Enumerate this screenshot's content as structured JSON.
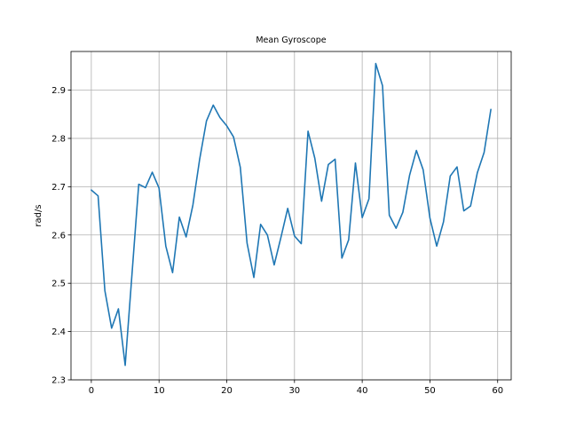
{
  "chart_data": {
    "type": "line",
    "title": "Mean Gyroscope",
    "xlabel": "",
    "ylabel": "rad/s",
    "xlim": [
      -3,
      62
    ],
    "ylim": [
      2.3,
      2.98
    ],
    "xticks": [
      0,
      10,
      20,
      30,
      40,
      50,
      60
    ],
    "yticks": [
      2.3,
      2.4,
      2.5,
      2.6,
      2.7,
      2.8,
      2.9
    ],
    "ytick_labels": [
      "2.3",
      "2.4",
      "2.5",
      "2.6",
      "2.7",
      "2.8",
      "2.9"
    ],
    "grid": true,
    "legend": "none",
    "series": [
      {
        "color": "#1f77b4",
        "x": [
          0,
          1,
          2,
          3,
          4,
          5,
          6,
          7,
          8,
          9,
          10,
          11,
          12,
          13,
          14,
          15,
          16,
          17,
          18,
          19,
          20,
          21,
          22,
          23,
          24,
          25,
          26,
          27,
          28,
          29,
          30,
          31,
          32,
          33,
          34,
          35,
          36,
          37,
          38,
          39,
          40,
          41,
          42,
          43,
          44,
          45,
          46,
          47,
          48,
          49,
          50,
          51,
          52,
          53,
          54,
          55,
          56,
          57,
          58,
          59
        ],
        "y": [
          2.693,
          2.681,
          2.485,
          2.407,
          2.447,
          2.33,
          2.518,
          2.705,
          2.698,
          2.73,
          2.697,
          2.577,
          2.522,
          2.637,
          2.596,
          2.662,
          2.757,
          2.836,
          2.869,
          2.843,
          2.826,
          2.803,
          2.74,
          2.583,
          2.512,
          2.622,
          2.6,
          2.538,
          2.595,
          2.655,
          2.598,
          2.582,
          2.815,
          2.759,
          2.67,
          2.746,
          2.757,
          2.552,
          2.59,
          2.749,
          2.636,
          2.675,
          2.955,
          2.909,
          2.641,
          2.614,
          2.647,
          2.724,
          2.775,
          2.735,
          2.635,
          2.577,
          2.627,
          2.722,
          2.741,
          2.65,
          2.66,
          2.729,
          2.771,
          2.86
        ]
      }
    ]
  }
}
